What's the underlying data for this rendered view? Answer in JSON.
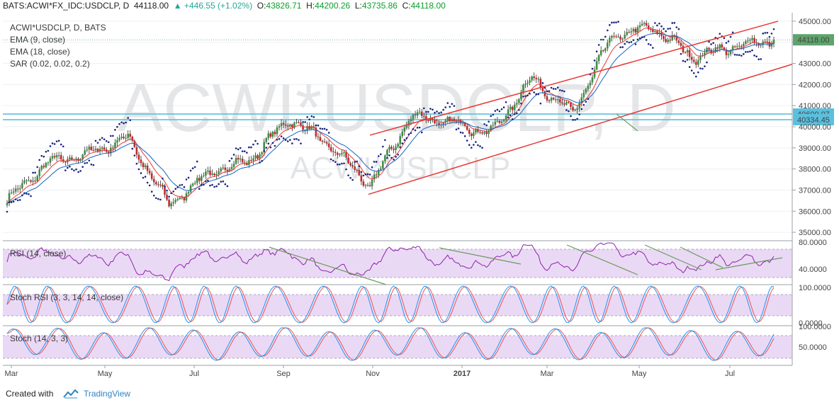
{
  "header": {
    "symbol": "BATS:ACWI*FX_IDC:USDCLP, D",
    "last": "44118.00",
    "change": "▲ +446.55 (+1.02%)",
    "o_label": "O:",
    "o_value": "43826.71",
    "h_label": "H:",
    "h_value": "44200.26",
    "l_label": "L:",
    "l_value": "43735.86",
    "c_label": "C:",
    "c_value": "44118.00"
  },
  "price_pane": {
    "watermark_big": "ACWI*USDCLP, D",
    "watermark_small": "ACWI*USDCLP",
    "legend": [
      "ACWI*USDCLP, D, BATS",
      "EMA (9, close)",
      "EMA (18, close)",
      "SAR (0.02, 0.02, 0.2)"
    ],
    "price_ticks": [
      "45000.00",
      "44000.00",
      "43000.00",
      "42000.00",
      "41000.00",
      "40000.00",
      "39000.00",
      "38000.00",
      "37000.00",
      "36000.00",
      "35000.00"
    ],
    "last_price_label": "44118.00",
    "level_labels": [
      "40600.07",
      "40334.45"
    ]
  },
  "rsi_pane": {
    "legend": "RSI (14, close)",
    "ticks": [
      "80.0000",
      "40.0000"
    ]
  },
  "stochrsi_pane": {
    "legend": "Stoch RSI (3, 3, 14, 14, close)",
    "ticks": [
      "100.0000",
      "0.0000"
    ]
  },
  "stoch_pane": {
    "legend": "Stoch (14, 3, 3)",
    "ticks": [
      "100.0000",
      "50.0000"
    ]
  },
  "x_axis": {
    "labels": [
      "Mar",
      "May",
      "Jul",
      "Sep",
      "Nov",
      "2017",
      "Mar",
      "May",
      "Jul"
    ],
    "bold": [
      false,
      false,
      false,
      false,
      false,
      true,
      false,
      false,
      false
    ]
  },
  "footer": {
    "created_with": "Created with",
    "brand": "TradingView"
  },
  "colors": {
    "bull": "#3e8e41",
    "bear": "#c62828",
    "ema9": "#e53935",
    "ema18": "#1565c0",
    "sar": "#1a237e",
    "channel": "#e53935",
    "level": "#5bc0de",
    "trend": "#6a9a5b",
    "rsi": "#8e24aa",
    "band": "#ead9f5",
    "stoch_k": "#2196f3",
    "stoch_d": "#ef5350",
    "last_price_bg": "#5ea36b"
  },
  "chart_data": {
    "type": "candlestick",
    "title": "ACWI*USDCLP, D",
    "indicators": [
      "EMA (9, close)",
      "EMA (18, close)",
      "SAR (0.02, 0.02, 0.2)",
      "RSI (14, close)",
      "Stoch RSI (3, 3, 14, 14, close)",
      "Stoch (14, 3, 3)"
    ],
    "x_labels": [
      "Mar",
      "May",
      "Jul",
      "Sep",
      "Nov",
      "2017",
      "Mar",
      "May",
      "Jul"
    ],
    "ylim": [
      34600,
      45400
    ],
    "horizontal_levels": [
      40600.07,
      40334.45
    ],
    "last_close": 44118.0,
    "close_path": [
      {
        "x": "Mar 2016",
        "y": 36500
      },
      {
        "x": "Apr 2016",
        "y": 38300
      },
      {
        "x": "May 2016",
        "y": 38700
      },
      {
        "x": "early Jun 2016",
        "y": 39500
      },
      {
        "x": "late Jun 2016",
        "y": 36300
      },
      {
        "x": "Jul 2016",
        "y": 37800
      },
      {
        "x": "Aug 2016",
        "y": 38400
      },
      {
        "x": "Sep 2016",
        "y": 40400
      },
      {
        "x": "Oct 2016",
        "y": 39100
      },
      {
        "x": "Nov 2016",
        "y": 37200
      },
      {
        "x": "Dec 2016",
        "y": 40500
      },
      {
        "x": "Jan 2017",
        "y": 40200
      },
      {
        "x": "Feb 2017",
        "y": 39700
      },
      {
        "x": "Mar 2017",
        "y": 42300
      },
      {
        "x": "Apr 2017",
        "y": 40600
      },
      {
        "x": "May 2017",
        "y": 44300
      },
      {
        "x": "Jun 2017",
        "y": 44700
      },
      {
        "x": "late Jun 2017",
        "y": 43300
      },
      {
        "x": "Jul 2017",
        "y": 43800
      },
      {
        "x": "Aug 2017",
        "y": 44118
      }
    ],
    "channel": {
      "upper": [
        {
          "x": "late Oct 2016",
          "y": 39700
        },
        {
          "x": "early Aug 2017",
          "y": 45000
        }
      ],
      "lower": [
        {
          "x": "late Oct 2016",
          "y": 37000
        },
        {
          "x": "early Aug 2017",
          "y": 43000
        }
      ]
    },
    "rsi_range": [
      30,
      80
    ]
  }
}
